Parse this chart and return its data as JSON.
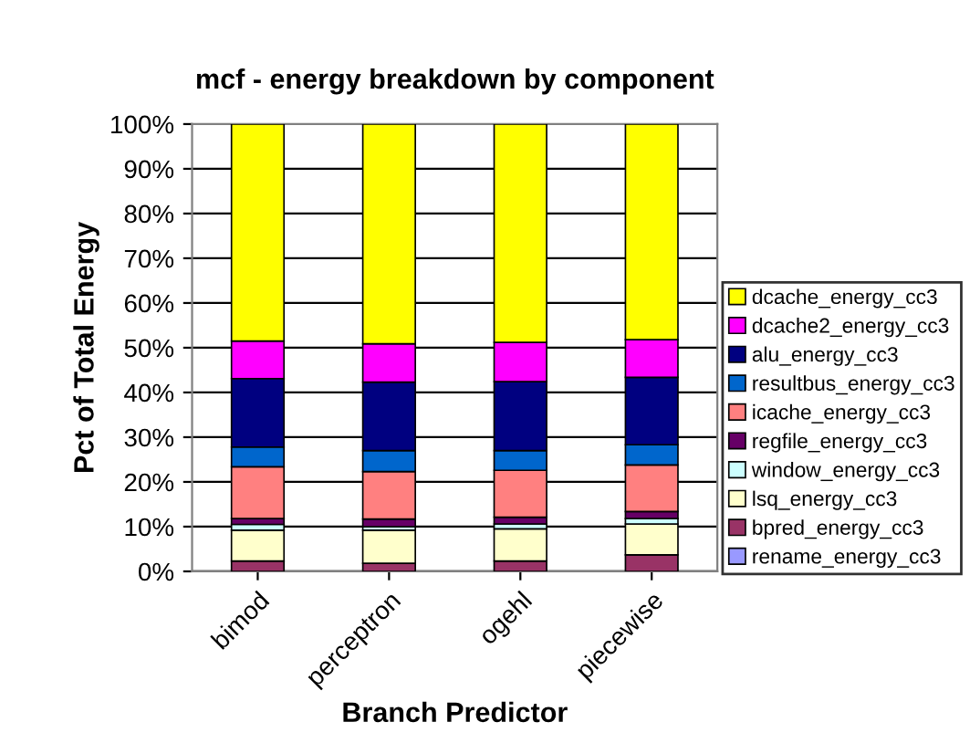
{
  "chart_data": {
    "type": "bar",
    "stacked": true,
    "title": "mcf - energy breakdown by component",
    "xlabel": "Branch Predictor",
    "ylabel": "Pct of Total Energy",
    "categories": [
      "bimod",
      "perceptron",
      "ogehl",
      "piecewise"
    ],
    "series": [
      {
        "name": "rename_energy_cc3",
        "color": "#9999ff",
        "values": [
          null,
          null,
          null,
          null
        ]
      },
      {
        "name": "bpred_energy_cc3",
        "color": "#993366",
        "values": [
          2.3,
          1.8,
          2.3,
          3.7
        ]
      },
      {
        "name": "lsq_energy_cc3",
        "color": "#ffffcc",
        "values": [
          6.9,
          7.4,
          7.2,
          6.9
        ]
      },
      {
        "name": "window_energy_cc3",
        "color": "#ccffff",
        "values": [
          1.3,
          0.8,
          1.1,
          1.2
        ]
      },
      {
        "name": "regfile_energy_cc3",
        "color": "#660066",
        "values": [
          1.3,
          1.7,
          1.5,
          1.6
        ]
      },
      {
        "name": "icache_energy_cc3",
        "color": "#ff8080",
        "values": [
          11.6,
          10.6,
          10.5,
          10.4
        ]
      },
      {
        "name": "resultbus_energy_cc3",
        "color": "#0066cc",
        "values": [
          4.4,
          4.7,
          4.4,
          4.5
        ]
      },
      {
        "name": "alu_energy_cc3",
        "color": "#000080",
        "values": [
          15.3,
          15.3,
          15.4,
          15.1
        ]
      },
      {
        "name": "dcache2_energy_cc3",
        "color": "#ff00ff",
        "values": [
          8.4,
          8.6,
          8.8,
          8.4
        ]
      },
      {
        "name": "dcache_energy_cc3",
        "color": "#ffff00",
        "values": [
          48.5,
          49.1,
          48.8,
          48.2
        ]
      }
    ],
    "ylim": [
      0,
      100
    ],
    "yticks": [
      {
        "value": 0,
        "label": "0%"
      },
      {
        "value": 10,
        "label": "10%"
      },
      {
        "value": 20,
        "label": "20%"
      },
      {
        "value": 30,
        "label": "30%"
      },
      {
        "value": 40,
        "label": "40%"
      },
      {
        "value": 50,
        "label": "50%"
      },
      {
        "value": 60,
        "label": "60%"
      },
      {
        "value": 70,
        "label": "70%"
      },
      {
        "value": 80,
        "label": "80%"
      },
      {
        "value": 90,
        "label": "90%"
      },
      {
        "value": 100,
        "label": "100%"
      }
    ],
    "grid": "y",
    "legend": "right"
  }
}
